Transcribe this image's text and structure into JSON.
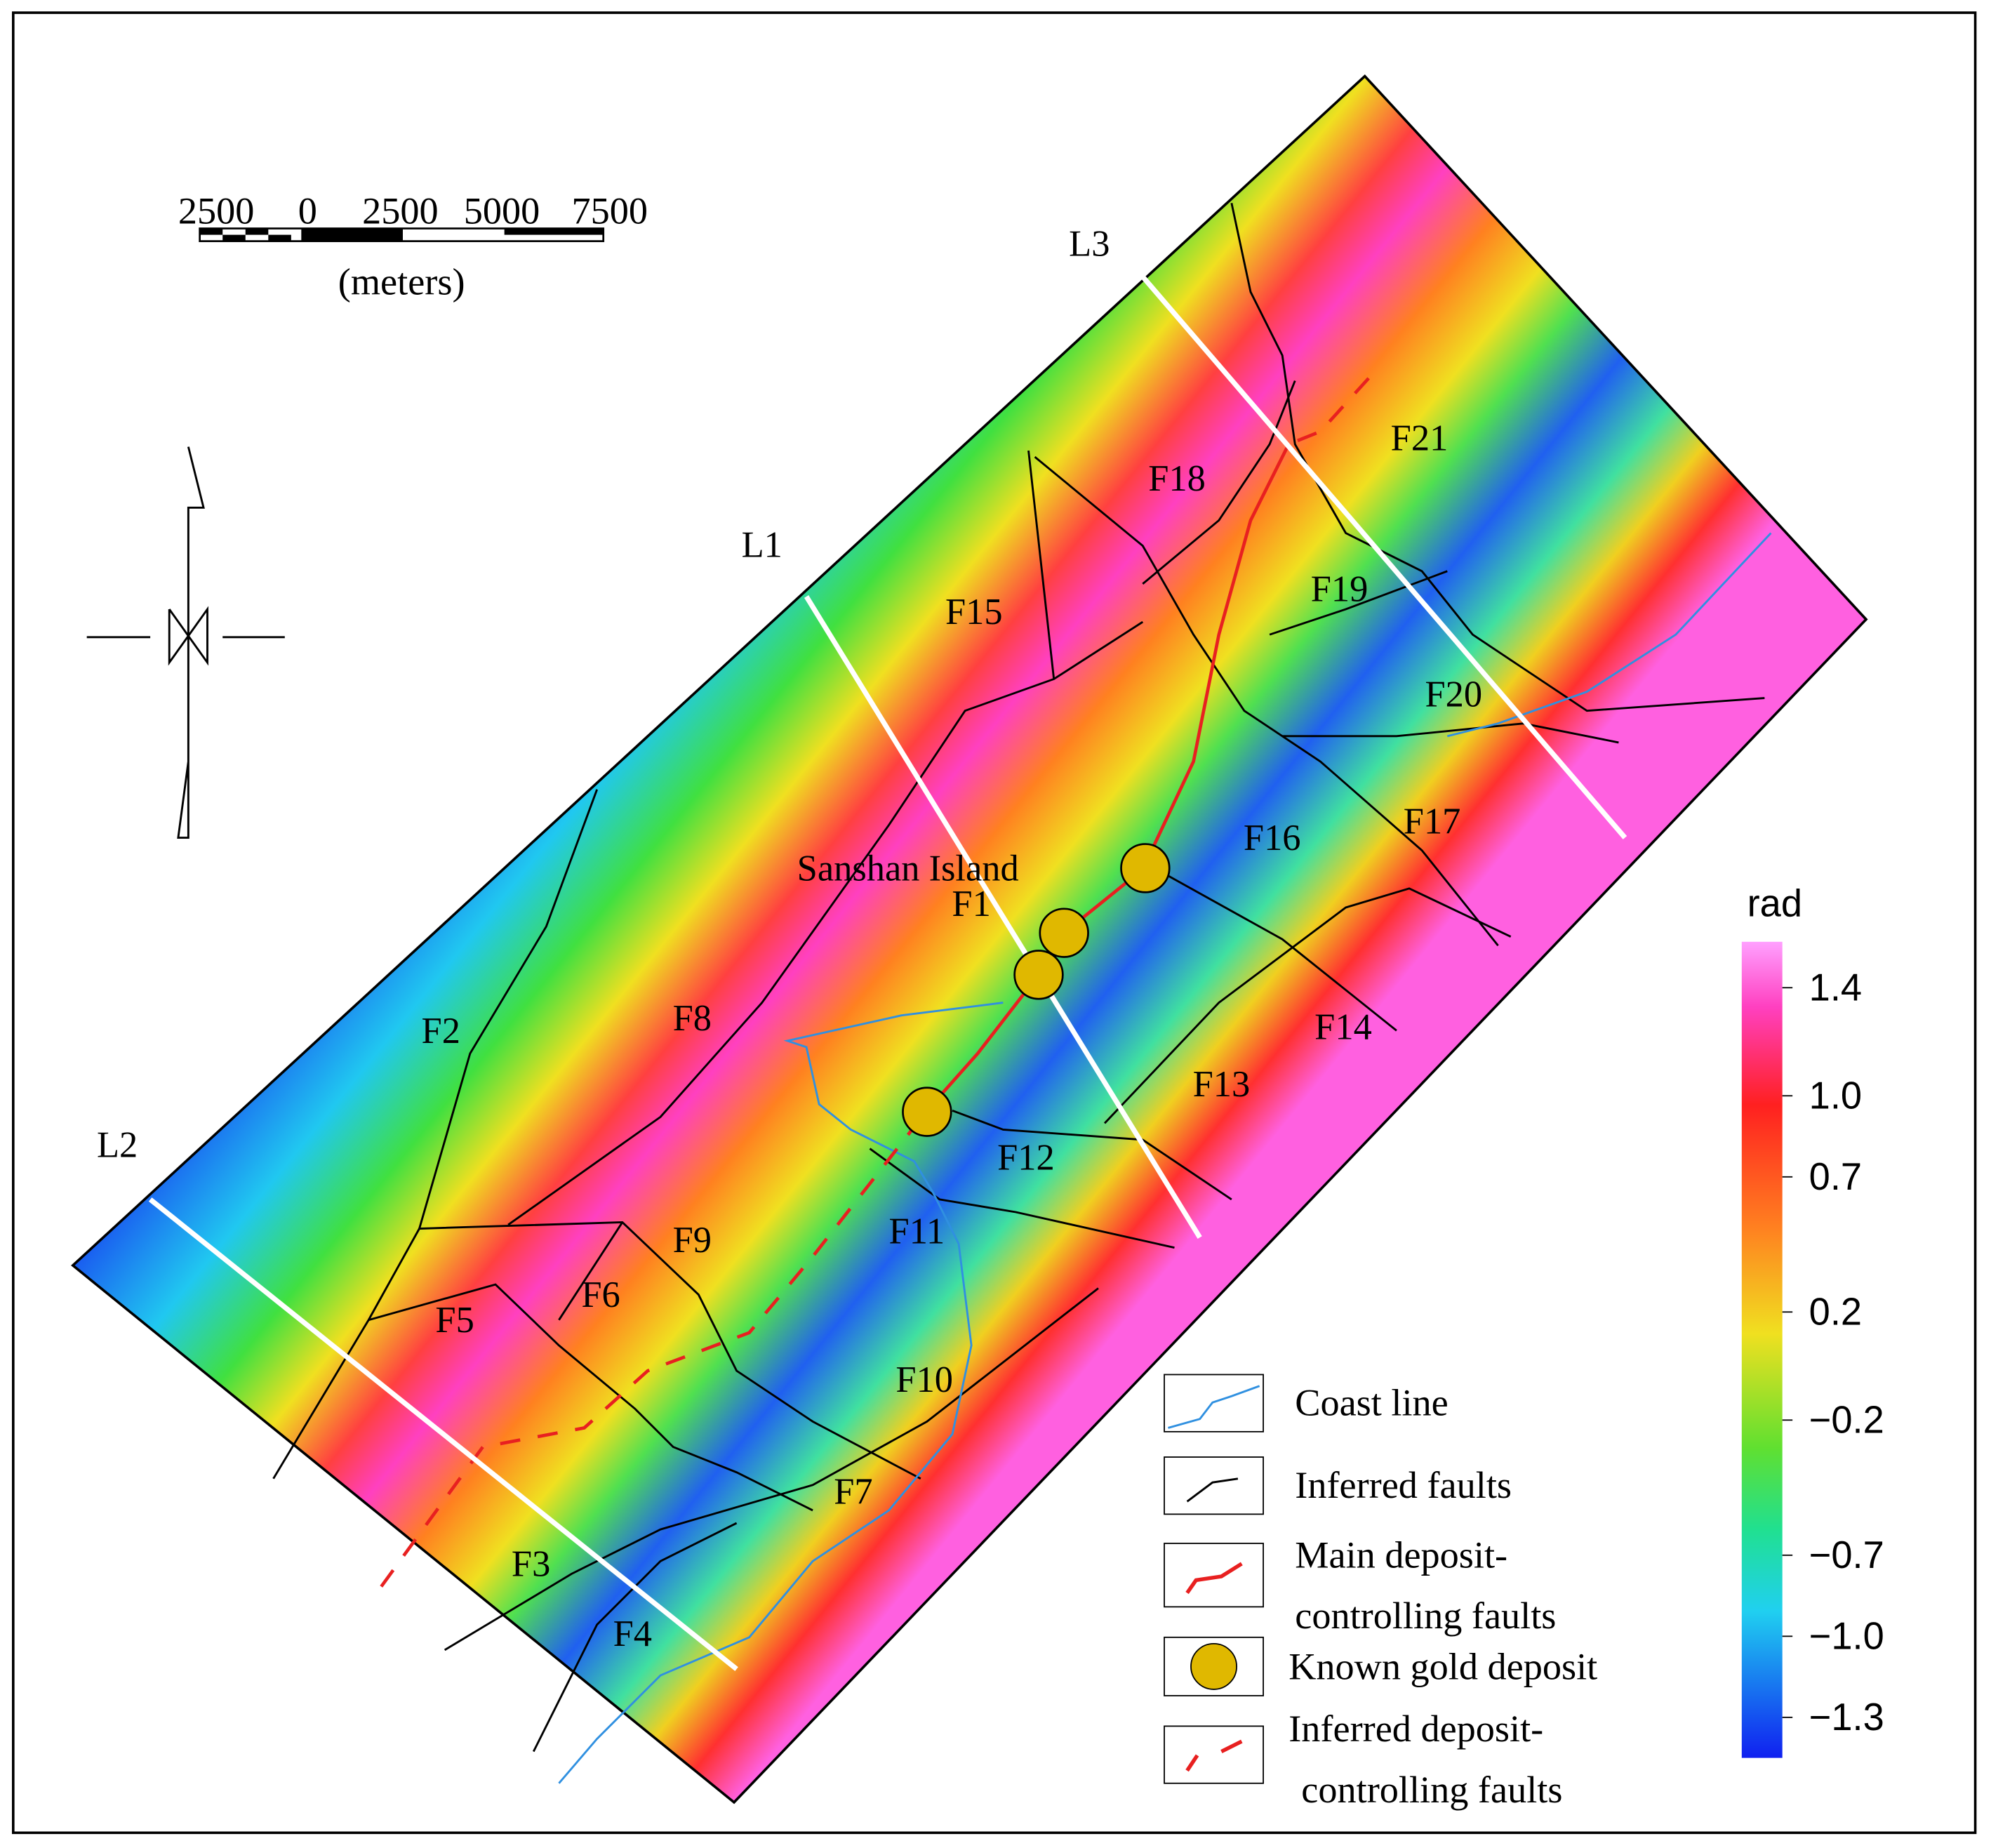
{
  "scale_bar": {
    "labels": [
      "2500",
      "0",
      "2500",
      "5000",
      "7500"
    ],
    "unit": "(meters)"
  },
  "section_lines": [
    "L1",
    "L2",
    "L3"
  ],
  "faults": [
    "F1",
    "F2",
    "F3",
    "F4",
    "F5",
    "F6",
    "F7",
    "F8",
    "F9",
    "F10",
    "F11",
    "F12",
    "F13",
    "F14",
    "F15",
    "F16",
    "F17",
    "F18",
    "F19",
    "F20",
    "F21"
  ],
  "place": "Sanshan Island",
  "legend": [
    {
      "lines": [
        "Coast line"
      ]
    },
    {
      "lines": [
        "Inferred faults"
      ]
    },
    {
      "lines": [
        "Main deposit-",
        "controlling faults"
      ]
    },
    {
      "lines": [
        "Known gold deposit"
      ]
    },
    {
      "lines": [
        "Inferred deposit-",
        "controlling faults"
      ]
    }
  ],
  "colorbar": {
    "title": "rad",
    "lim": [
      -1.45,
      1.57
    ],
    "ticks": [
      1.4,
      {
        "value": 1.0,
        "label": "1.0"
      },
      0.7,
      0.2,
      {
        "value": -0.2,
        "label": "−0.2"
      },
      {
        "value": -0.7,
        "label": "−0.7"
      },
      {
        "value": -1.0,
        "label": "−1.0"
      },
      {
        "value": -1.3,
        "label": "−1.3"
      }
    ]
  }
}
